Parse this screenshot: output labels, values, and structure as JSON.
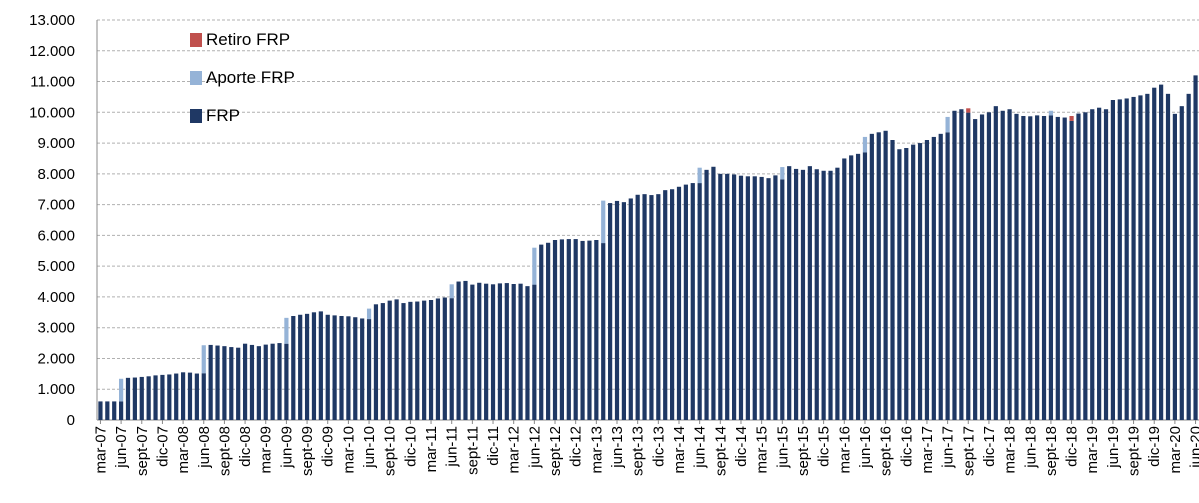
{
  "chart_data": {
    "type": "stacked-bar",
    "categories": [
      "mar-07",
      null,
      null,
      "jun-07",
      null,
      null,
      "sept-07",
      null,
      null,
      "dic-07",
      null,
      null,
      "mar-08",
      null,
      null,
      "jun-08",
      null,
      null,
      "sept-08",
      null,
      null,
      "dic-08",
      null,
      null,
      "mar-09",
      null,
      null,
      "jun-09",
      null,
      null,
      "sept-09",
      null,
      null,
      "dic-09",
      null,
      null,
      "mar-10",
      null,
      null,
      "jun-10",
      null,
      null,
      "sept-10",
      null,
      null,
      "dic-10",
      null,
      null,
      "mar-11",
      null,
      null,
      "jun-11",
      null,
      null,
      "sept-11",
      null,
      null,
      "dic-11",
      null,
      null,
      "mar-12",
      null,
      null,
      "jun-12",
      null,
      null,
      "sept-12",
      null,
      null,
      "dic-12",
      null,
      null,
      "mar-13",
      null,
      null,
      "jun-13",
      null,
      null,
      "sept-13",
      null,
      null,
      "dic-13",
      null,
      null,
      "mar-14",
      null,
      null,
      "jun-14",
      null,
      null,
      "sept-14",
      null,
      null,
      "dic-14",
      null,
      null,
      "mar-15",
      null,
      null,
      "jun-15",
      null,
      null,
      "sept-15",
      null,
      null,
      "dic-15",
      null,
      null,
      "mar-16",
      null,
      null,
      "jun-16",
      null,
      null,
      "sept-16",
      null,
      null,
      "dic-16",
      null,
      null,
      "mar-17",
      null,
      null,
      "jun-17",
      null,
      null,
      "sept-17",
      null,
      null,
      "dic-17",
      null,
      null,
      "mar-18",
      null,
      null,
      "jun-18",
      null,
      null,
      "sept-18",
      null,
      null,
      "dic-18",
      null,
      null,
      "mar-19",
      null,
      null,
      "jun-19",
      null,
      null,
      "sept-19",
      null,
      null,
      "dic-19",
      null,
      null,
      "mar-20",
      null,
      null,
      "jun-20"
    ],
    "series": [
      {
        "name": "FRP",
        "color": "#1f3864",
        "values": [
          604,
          604,
          604,
          604,
          1370,
          1380,
          1400,
          1420,
          1450,
          1466,
          1480,
          1510,
          1550,
          1540,
          1510,
          1520,
          2440,
          2420,
          2400,
          2370,
          2350,
          2480,
          2440,
          2400,
          2450,
          2480,
          2500,
          2480,
          3380,
          3420,
          3450,
          3500,
          3530,
          3420,
          3400,
          3380,
          3370,
          3340,
          3300,
          3280,
          3760,
          3800,
          3880,
          3920,
          3800,
          3840,
          3850,
          3880,
          3900,
          3950,
          3980,
          3960,
          4500,
          4520,
          4400,
          4460,
          4430,
          4410,
          4440,
          4450,
          4420,
          4430,
          4350,
          4400,
          5700,
          5760,
          5850,
          5870,
          5880,
          5880,
          5820,
          5830,
          5850,
          5750,
          7050,
          7120,
          7080,
          7200,
          7320,
          7340,
          7310,
          7340,
          7470,
          7500,
          7580,
          7650,
          7700,
          7700,
          8130,
          8230,
          8000,
          8000,
          7980,
          7940,
          7920,
          7920,
          7900,
          7860,
          7950,
          7820,
          8250,
          8160,
          8130,
          8250,
          8150,
          8100,
          8100,
          8200,
          8500,
          8600,
          8650,
          8700,
          9300,
          9350,
          9400,
          9100,
          8800,
          8840,
          8950,
          9000,
          9100,
          9200,
          9300,
          9350,
          10050,
          10100,
          9990,
          9780,
          9930,
          10000,
          10200,
          10050,
          10100,
          9950,
          9880,
          9870,
          9900,
          9880,
          9900,
          9850,
          9830,
          9720,
          9960,
          10000,
          10100,
          10150,
          10100,
          10400,
          10420,
          10450,
          10500,
          10550,
          10600,
          10800,
          10900,
          10600,
          9950,
          10200,
          10600,
          11200
        ]
      },
      {
        "name": "Aporte FRP",
        "color": "#95b3d7",
        "values": [
          0,
          0,
          0,
          736,
          0,
          0,
          0,
          0,
          0,
          0,
          0,
          0,
          0,
          0,
          0,
          910,
          0,
          0,
          0,
          0,
          0,
          0,
          0,
          0,
          0,
          0,
          0,
          840,
          0,
          0,
          0,
          0,
          0,
          0,
          0,
          0,
          0,
          0,
          0,
          340,
          0,
          0,
          0,
          0,
          0,
          0,
          0,
          0,
          0,
          0,
          0,
          450,
          0,
          0,
          0,
          0,
          0,
          0,
          0,
          0,
          0,
          0,
          0,
          1200,
          0,
          0,
          0,
          0,
          0,
          0,
          0,
          0,
          0,
          1380,
          0,
          0,
          0,
          0,
          0,
          0,
          0,
          0,
          0,
          0,
          0,
          0,
          0,
          500,
          0,
          0,
          0,
          0,
          0,
          0,
          0,
          0,
          0,
          0,
          0,
          400,
          0,
          0,
          0,
          0,
          0,
          0,
          0,
          0,
          0,
          0,
          0,
          500,
          0,
          0,
          0,
          0,
          0,
          0,
          0,
          0,
          0,
          0,
          0,
          500,
          0,
          0,
          0,
          0,
          0,
          0,
          0,
          0,
          0,
          0,
          0,
          0,
          0,
          0,
          150,
          0,
          0,
          0,
          0,
          0,
          0,
          0,
          0,
          0,
          0,
          0,
          0,
          0,
          0,
          0,
          0,
          0,
          0,
          0,
          0,
          0
        ]
      },
      {
        "name": "Retiro FRP",
        "color": "#c0504d",
        "values": [
          0,
          0,
          0,
          0,
          0,
          0,
          0,
          0,
          0,
          0,
          0,
          0,
          0,
          0,
          0,
          0,
          0,
          0,
          0,
          0,
          0,
          0,
          0,
          0,
          0,
          0,
          0,
          0,
          0,
          0,
          0,
          0,
          0,
          0,
          0,
          0,
          0,
          0,
          0,
          0,
          0,
          0,
          0,
          0,
          0,
          0,
          0,
          0,
          0,
          0,
          0,
          0,
          0,
          0,
          0,
          0,
          0,
          0,
          0,
          0,
          0,
          0,
          0,
          0,
          0,
          0,
          0,
          0,
          0,
          0,
          0,
          0,
          0,
          0,
          0,
          0,
          0,
          0,
          0,
          0,
          0,
          0,
          0,
          0,
          0,
          0,
          0,
          0,
          0,
          0,
          0,
          0,
          0,
          0,
          0,
          0,
          0,
          0,
          0,
          0,
          0,
          0,
          0,
          0,
          0,
          0,
          0,
          0,
          0,
          0,
          0,
          0,
          0,
          0,
          0,
          0,
          0,
          0,
          0,
          0,
          0,
          0,
          0,
          0,
          0,
          0,
          140,
          0,
          0,
          0,
          0,
          0,
          0,
          0,
          0,
          0,
          0,
          0,
          0,
          0,
          0,
          160,
          0,
          0,
          0,
          0,
          0,
          0,
          0,
          0,
          0,
          0,
          0,
          0,
          0,
          0,
          0,
          0,
          0,
          0
        ]
      }
    ],
    "ylim": [
      0,
      13000
    ],
    "yticks": [
      0,
      {
        "value": 1000,
        "label": "1.000"
      },
      {
        "value": 2000,
        "label": "2.000"
      },
      {
        "value": 3000,
        "label": "3.000"
      },
      {
        "value": 4000,
        "label": "4.000"
      },
      {
        "value": 5000,
        "label": "5.000"
      },
      {
        "value": 6000,
        "label": "6.000"
      },
      {
        "value": 7000,
        "label": "7.000"
      },
      {
        "value": 8000,
        "label": "8.000"
      },
      {
        "value": 9000,
        "label": "9.000"
      },
      {
        "value": 10000,
        "label": "10.000"
      },
      {
        "value": 11000,
        "label": "11.000"
      },
      {
        "value": 12000,
        "label": "12.000"
      },
      {
        "value": 13000,
        "label": "13.000"
      }
    ],
    "grid": true,
    "legend": "top-left"
  }
}
